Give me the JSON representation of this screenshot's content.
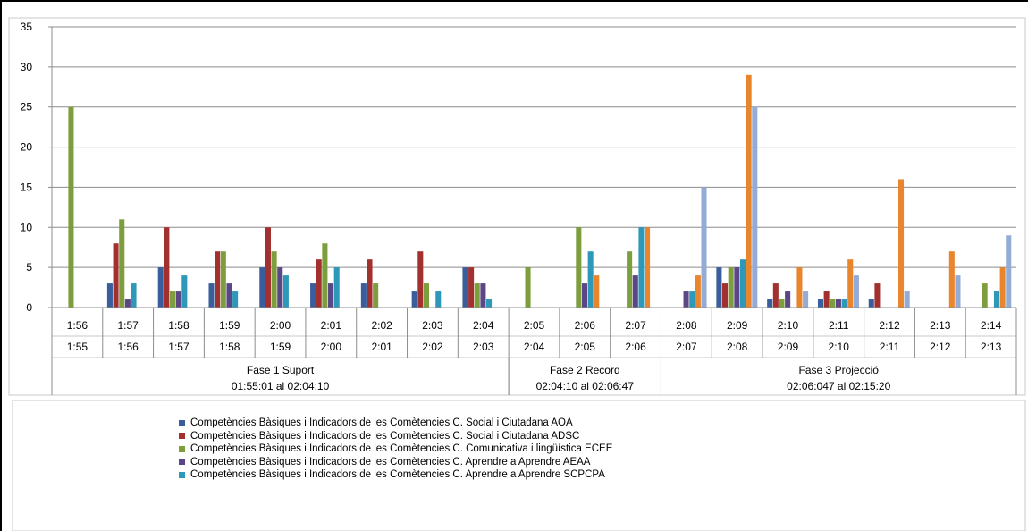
{
  "chart_data": {
    "type": "bar",
    "ylim": [
      0,
      35
    ],
    "yticks": [
      0,
      5,
      10,
      15,
      20,
      25,
      30,
      35
    ],
    "grid": true,
    "legend_position": "bottom",
    "categories": [
      {
        "top": "1:56",
        "bottom": "1:55"
      },
      {
        "top": "1:57",
        "bottom": "1:56"
      },
      {
        "top": "1:58",
        "bottom": "1:57"
      },
      {
        "top": "1:59",
        "bottom": "1:58"
      },
      {
        "top": "2:00",
        "bottom": "1:59"
      },
      {
        "top": "2:01",
        "bottom": "2:00"
      },
      {
        "top": "2:02",
        "bottom": "2:01"
      },
      {
        "top": "2:03",
        "bottom": "2:02"
      },
      {
        "top": "2:04",
        "bottom": "2:03"
      },
      {
        "top": "2:05",
        "bottom": "2:04"
      },
      {
        "top": "2:06",
        "bottom": "2:05"
      },
      {
        "top": "2:07",
        "bottom": "2:06"
      },
      {
        "top": "2:08",
        "bottom": "2:07"
      },
      {
        "top": "2:09",
        "bottom": "2:08"
      },
      {
        "top": "2:10",
        "bottom": "2:09"
      },
      {
        "top": "2:11",
        "bottom": "2:10"
      },
      {
        "top": "2:12",
        "bottom": "2:11"
      },
      {
        "top": "2:13",
        "bottom": "2:12"
      },
      {
        "top": "2:14",
        "bottom": "2:13"
      }
    ],
    "groups": [
      {
        "label": "Fase 1 Suport",
        "range": "01:55:01 al 02:04:10",
        "from": 0,
        "to": 8
      },
      {
        "label": "Fase 2 Record",
        "range": "02:04:10 al 02:06:47",
        "from": 9,
        "to": 11
      },
      {
        "label": "Fase 3 Projecció",
        "range": "02:06:047 al 02:15:20",
        "from": 12,
        "to": 18
      }
    ],
    "series": [
      {
        "name": "Competències Bàsiques i Indicadors de les Comètencies C. Social i Ciutadana AOA",
        "color": "#3a5e9c",
        "values": [
          0,
          3,
          5,
          3,
          5,
          3,
          3,
          2,
          5,
          0,
          0,
          0,
          0,
          5,
          1,
          1,
          1,
          0,
          0
        ]
      },
      {
        "name": "Competències Bàsiques i Indicadors de les Comètencies C. Social i Ciutadana ADSC",
        "color": "#a2302f",
        "values": [
          0,
          8,
          10,
          7,
          10,
          6,
          6,
          7,
          5,
          0,
          0,
          0,
          0,
          3,
          3,
          2,
          3,
          0,
          0
        ]
      },
      {
        "name": "Competències Bàsiques i Indicadors de les Comètencies C. Comunicativa i lingüística ECEE",
        "color": "#7c9e3c",
        "values": [
          25,
          11,
          2,
          7,
          7,
          8,
          3,
          3,
          3,
          5,
          10,
          7,
          0,
          5,
          1,
          1,
          0,
          0,
          3
        ]
      },
      {
        "name": "Competències Bàsiques i Indicadors de les Comètencies C. Aprendre a Aprendre AEAA",
        "color": "#5b4786",
        "values": [
          0,
          1,
          2,
          3,
          5,
          3,
          0,
          0,
          3,
          0,
          3,
          4,
          2,
          5,
          2,
          1,
          0,
          0,
          0
        ]
      },
      {
        "name": "Competències Bàsiques i Indicadors de les Comètencies C. Aprendre a Aprendre SCPCPA",
        "color": "#2e98b8",
        "values": [
          0,
          3,
          4,
          2,
          4,
          5,
          0,
          2,
          1,
          0,
          7,
          10,
          2,
          6,
          0,
          1,
          0,
          0,
          2
        ]
      },
      {
        "color": "#e8852d",
        "values": [
          0,
          0,
          0,
          0,
          0,
          0,
          0,
          0,
          0,
          0,
          4,
          10,
          4,
          29,
          5,
          6,
          16,
          7,
          5
        ]
      },
      {
        "color": "#93acd6",
        "values": [
          0,
          0,
          0,
          0,
          0,
          0,
          0,
          0,
          0,
          0,
          0,
          0,
          15,
          25,
          2,
          4,
          2,
          4,
          9
        ]
      }
    ]
  }
}
